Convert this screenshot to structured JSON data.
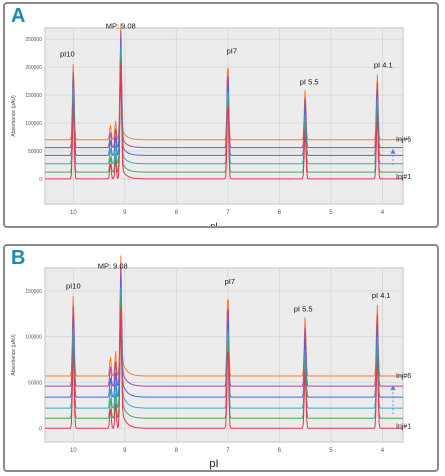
{
  "chart_data": [
    {
      "type": "line",
      "panel_label": "A",
      "ylabel": "Absorbance (μAU)",
      "xlabel": "pI",
      "x_ticks": [
        "10",
        "9",
        "8",
        "7",
        "6",
        "5",
        "4"
      ],
      "y_ticks": [
        "250000",
        "200000",
        "150000",
        "100000",
        "50000",
        "0"
      ],
      "xlim": [
        10.55,
        3.6
      ],
      "ylim": [
        -45000,
        270000
      ],
      "grid": true,
      "series": [
        {
          "name": "Inj#1",
          "color": "#e8344f",
          "offset": 0
        },
        {
          "name": "",
          "color": "#4aa65a",
          "offset": 12000
        },
        {
          "name": "",
          "color": "#3aa7c9",
          "offset": 27000
        },
        {
          "name": "",
          "color": "#3c6fd6",
          "offset": 42000
        },
        {
          "name": "",
          "color": "#b044a8",
          "offset": 56000
        },
        {
          "name": "Inj#6",
          "color": "#f07e2f",
          "offset": 70000
        }
      ],
      "peaks": [
        {
          "x": 10.0,
          "height": 140000,
          "label": "pI10"
        },
        {
          "x": 9.08,
          "height": 190000,
          "label": "MP: 9.08"
        },
        {
          "x": 7.0,
          "height": 145000,
          "label": "pI7"
        },
        {
          "x": 5.5,
          "height": 90000,
          "label": "pI 5.5"
        },
        {
          "x": 4.1,
          "height": 120000,
          "label": "pI 4.1"
        }
      ],
      "shoulders": [
        {
          "x": 9.18,
          "height": 35000
        },
        {
          "x": 9.28,
          "height": 28000
        }
      ],
      "arrow_labels": {
        "top": "Inj#6",
        "bottom": "Inj#1"
      }
    },
    {
      "type": "line",
      "panel_label": "B",
      "ylabel": "Absorbance (μAU)",
      "xlabel": "pI",
      "x_ticks": [
        "10",
        "9",
        "8",
        "7",
        "6",
        "5",
        "4"
      ],
      "y_ticks": [
        "150000",
        "100000",
        "50000",
        "0"
      ],
      "xlim": [
        10.55,
        3.6
      ],
      "ylim": [
        -15000,
        175000
      ],
      "grid": true,
      "series": [
        {
          "name": "Inj#1",
          "color": "#e8344f",
          "offset": 0
        },
        {
          "name": "",
          "color": "#4aa65a",
          "offset": 11000
        },
        {
          "name": "",
          "color": "#3aa7c9",
          "offset": 22000
        },
        {
          "name": "",
          "color": "#3c6fd6",
          "offset": 34000
        },
        {
          "name": "",
          "color": "#b044a8",
          "offset": 46000
        },
        {
          "name": "Inj#6",
          "color": "#f07e2f",
          "offset": 57000
        }
      ],
      "peaks": [
        {
          "x": 10.0,
          "height": 90000,
          "label": "pI10"
        },
        {
          "x": 9.08,
          "height": 112000,
          "label": "MP: 9.08"
        },
        {
          "x": 7.0,
          "height": 95000,
          "label": "pI7"
        },
        {
          "x": 5.5,
          "height": 65000,
          "label": "pI 5.5"
        },
        {
          "x": 4.1,
          "height": 80000,
          "label": "pI 4.1"
        }
      ],
      "shoulders": [
        {
          "x": 9.18,
          "height": 28000
        },
        {
          "x": 9.28,
          "height": 22000
        }
      ],
      "arrow_labels": {
        "top": "Inj#6",
        "bottom": "Inj#1"
      }
    }
  ]
}
